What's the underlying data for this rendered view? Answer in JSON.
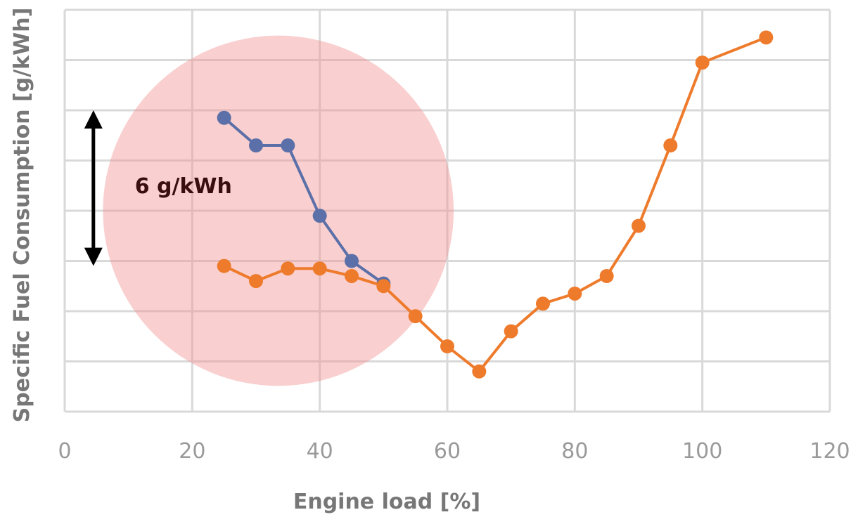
{
  "chart_data": {
    "type": "line",
    "title": "",
    "xlabel": "Engine load [%]",
    "ylabel": "Specific Fuel Consumption [g/kWh]",
    "xlim": [
      0,
      120
    ],
    "xticks": [
      "0",
      "20",
      "40",
      "60",
      "80",
      "100",
      "120"
    ],
    "ylim": [
      0,
      8
    ],
    "grid": true,
    "legend": "none",
    "series": [
      {
        "color": "#5b6fa8",
        "x": [
          25,
          30,
          35,
          40,
          45,
          50
        ],
        "y": [
          5.85,
          5.3,
          5.3,
          3.9,
          3.0,
          2.55
        ]
      },
      {
        "color": "#ee7b2c",
        "x": [
          25,
          30,
          35,
          40,
          45,
          50,
          55,
          60,
          65,
          70,
          75,
          80,
          85,
          90,
          95,
          100,
          110
        ],
        "y": [
          2.9,
          2.6,
          2.85,
          2.85,
          2.7,
          2.5,
          1.9,
          1.3,
          0.8,
          1.6,
          2.15,
          2.35,
          2.7,
          3.7,
          5.3,
          6.95,
          7.45
        ]
      }
    ],
    "annotations": [
      {
        "text": "6 g/kWh",
        "x": 11,
        "y": 4.35
      }
    ],
    "highlight": {
      "shape": "circle",
      "color": "#f08c8c",
      "cx": 33.5,
      "cy": 4.0,
      "r": 27.5
    },
    "arrow": {
      "x": 4.5,
      "y_from": 2.9,
      "y_to": 6.0
    }
  }
}
